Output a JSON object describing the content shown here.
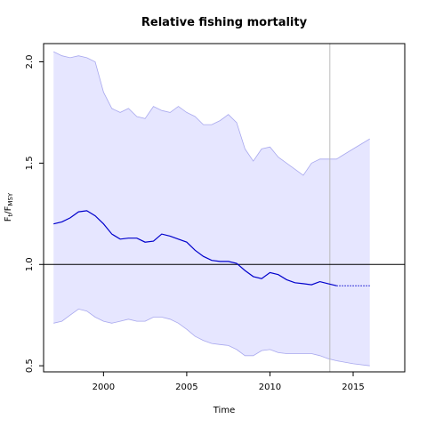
{
  "chart_data": {
    "type": "line",
    "title": "Relative fishing mortality",
    "xlabel": "Time",
    "ylabel": {
      "main": "F",
      "sub1": "t",
      "slash": "/F",
      "sub2": "MSY"
    },
    "xlim": [
      1996.4,
      2018.1
    ],
    "ylim": [
      0.47,
      2.09
    ],
    "xticks": [
      2000,
      2005,
      2010,
      2015
    ],
    "yticks": [
      0.5,
      1.0,
      1.5,
      2.0
    ],
    "xtick_labels": [
      "2000",
      "2005",
      "2010",
      "2015"
    ],
    "ytick_labels": [
      "0.5",
      "1.0",
      "1.5",
      "2.0"
    ],
    "reference_line_y": 1.0,
    "vertical_line_x": 2013.6,
    "colors": {
      "band": "#e6e6ff",
      "band_edge": "#a8a8ee",
      "line": "#0000cc",
      "reference": "#000000",
      "vline": "#bbbbbb"
    },
    "series": [
      {
        "role": "estimate",
        "x": [
          1997.0,
          1997.5,
          1998.0,
          1998.5,
          1999.0,
          1999.5,
          2000.0,
          2000.5,
          2001.0,
          2001.5,
          2002.0,
          2002.5,
          2003.0,
          2003.5,
          2004.0,
          2004.5,
          2005.0,
          2005.5,
          2006.0,
          2006.5,
          2007.0,
          2007.5,
          2008.0,
          2008.5,
          2009.0,
          2009.5,
          2010.0,
          2010.5,
          2011.0,
          2011.5,
          2012.0,
          2012.5,
          2013.0,
          2013.5,
          2014.0
        ],
        "y": [
          1.2,
          1.21,
          1.23,
          1.26,
          1.265,
          1.24,
          1.2,
          1.15,
          1.125,
          1.13,
          1.13,
          1.11,
          1.115,
          1.15,
          1.14,
          1.125,
          1.11,
          1.07,
          1.04,
          1.02,
          1.015,
          1.015,
          1.005,
          0.97,
          0.94,
          0.93,
          0.96,
          0.95,
          0.925,
          0.91,
          0.905,
          0.9,
          0.915,
          0.905,
          0.895
        ]
      },
      {
        "role": "projection",
        "x": [
          2014.0,
          2015.0,
          2016.0
        ],
        "y": [
          0.895,
          0.895,
          0.895
        ]
      },
      {
        "role": "upper_bound",
        "x": [
          1997.0,
          1997.5,
          1998.0,
          1998.5,
          1999.0,
          1999.5,
          2000.0,
          2000.5,
          2001.0,
          2001.5,
          2002.0,
          2002.5,
          2003.0,
          2003.5,
          2004.0,
          2004.5,
          2005.0,
          2005.5,
          2006.0,
          2006.5,
          2007.0,
          2007.5,
          2008.0,
          2008.5,
          2009.0,
          2009.5,
          2010.0,
          2010.5,
          2011.0,
          2011.5,
          2012.0,
          2012.5,
          2013.0,
          2013.5,
          2014.0,
          2015.0,
          2016.0
        ],
        "y": [
          2.05,
          2.03,
          2.02,
          2.03,
          2.02,
          2.0,
          1.85,
          1.77,
          1.75,
          1.77,
          1.73,
          1.72,
          1.78,
          1.76,
          1.75,
          1.78,
          1.75,
          1.73,
          1.69,
          1.69,
          1.71,
          1.74,
          1.7,
          1.57,
          1.51,
          1.57,
          1.58,
          1.53,
          1.5,
          1.47,
          1.44,
          1.5,
          1.52,
          1.52,
          1.52,
          1.57,
          1.62
        ]
      },
      {
        "role": "lower_bound",
        "x": [
          1997.0,
          1997.5,
          1998.0,
          1998.5,
          1999.0,
          1999.5,
          2000.0,
          2000.5,
          2001.0,
          2001.5,
          2002.0,
          2002.5,
          2003.0,
          2003.5,
          2004.0,
          2004.5,
          2005.0,
          2005.5,
          2006.0,
          2006.5,
          2007.0,
          2007.5,
          2008.0,
          2008.5,
          2009.0,
          2009.5,
          2010.0,
          2010.5,
          2011.0,
          2011.5,
          2012.0,
          2012.5,
          2013.0,
          2013.5,
          2014.0,
          2015.0,
          2016.0
        ],
        "y": [
          0.71,
          0.72,
          0.75,
          0.78,
          0.77,
          0.74,
          0.72,
          0.71,
          0.72,
          0.73,
          0.72,
          0.72,
          0.74,
          0.74,
          0.73,
          0.71,
          0.68,
          0.645,
          0.625,
          0.61,
          0.605,
          0.6,
          0.58,
          0.55,
          0.55,
          0.575,
          0.58,
          0.565,
          0.56,
          0.56,
          0.56,
          0.56,
          0.55,
          0.535,
          0.525,
          0.51,
          0.5
        ]
      }
    ]
  }
}
